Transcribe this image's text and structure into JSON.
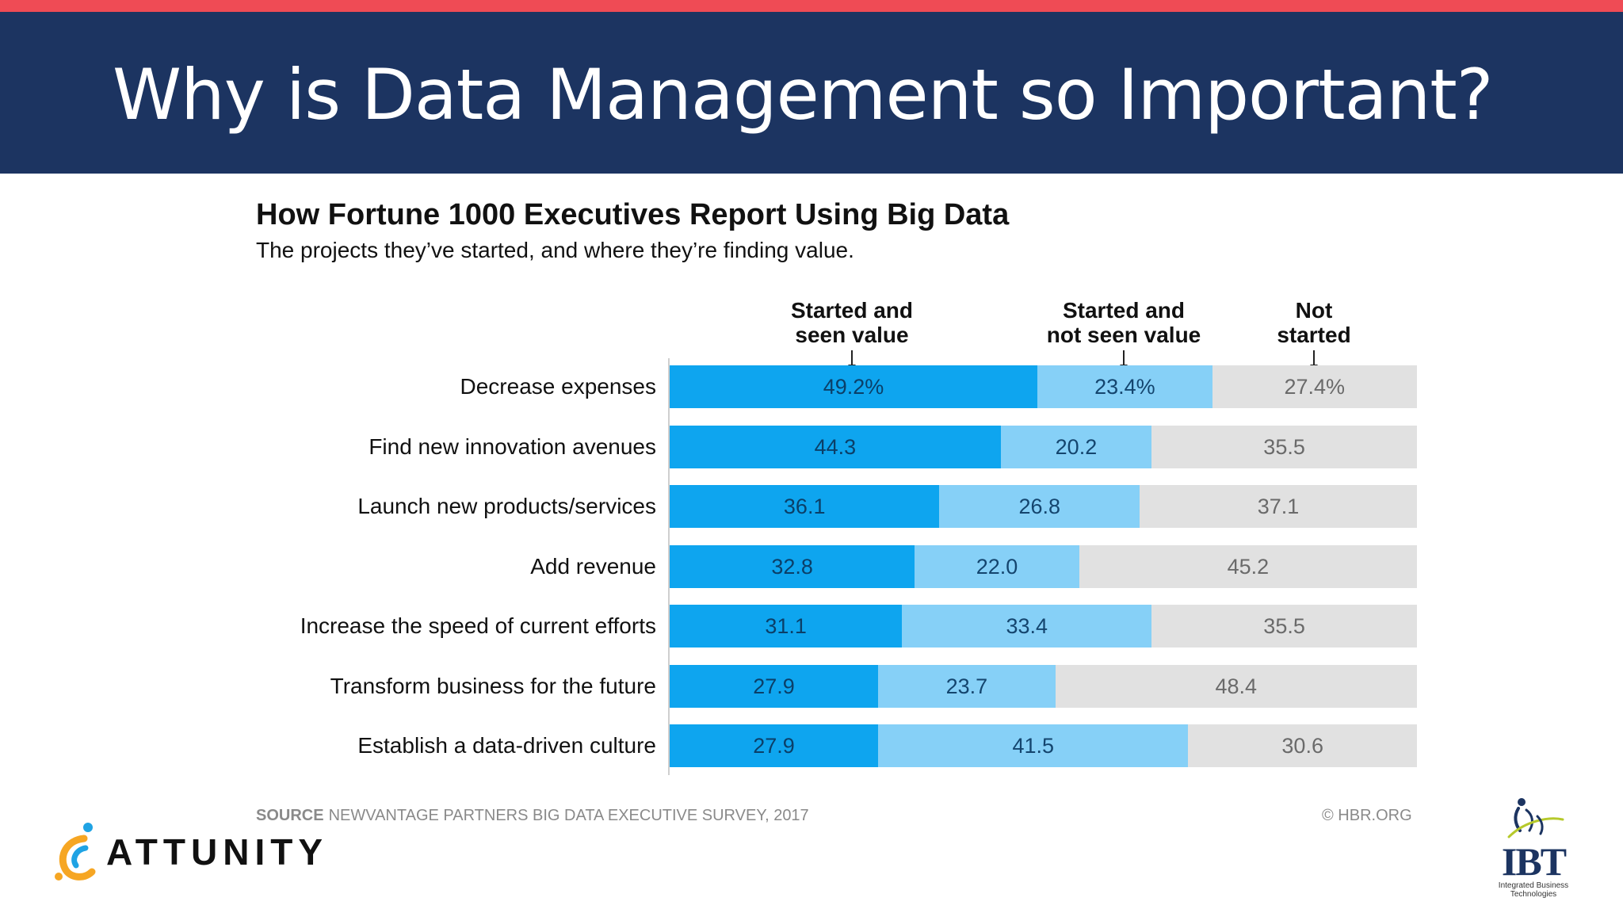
{
  "slide": {
    "title": "Why is Data Management so Important?"
  },
  "chart_data": {
    "type": "bar",
    "orientation": "horizontal",
    "stacked": true,
    "title": "How Fortune 1000 Executives Report Using Big Data",
    "subtitle": "The projects they’ve started, and where they’re finding value.",
    "categories": [
      "Decrease expenses",
      "Find new innovation avenues",
      "Launch new products/services",
      "Add revenue",
      "Increase the speed of current efforts",
      "Transform business for the future",
      "Establish a data-driven culture"
    ],
    "series": [
      {
        "name": "Started and seen value",
        "color": "#0ea5ef",
        "values": [
          49.2,
          44.3,
          36.1,
          32.8,
          31.1,
          27.9,
          27.9
        ]
      },
      {
        "name": "Started and not seen value",
        "color": "#86d0f7",
        "values": [
          23.4,
          20.2,
          26.8,
          22.0,
          33.4,
          23.7,
          41.5
        ]
      },
      {
        "name": "Not started",
        "color": "#e1e1e1",
        "values": [
          27.4,
          35.5,
          37.1,
          45.2,
          35.5,
          48.4,
          30.6
        ]
      }
    ],
    "data_labels": [
      [
        "49.2%",
        "23.4%",
        "27.4%"
      ],
      [
        "44.3",
        "20.2",
        "35.5"
      ],
      [
        "36.1",
        "26.8",
        "37.1"
      ],
      [
        "32.8",
        "22.0",
        "45.2"
      ],
      [
        "31.1",
        "33.4",
        "35.5"
      ],
      [
        "27.9",
        "23.7",
        "48.4"
      ],
      [
        "27.9",
        "41.5",
        "30.6"
      ]
    ],
    "legend": {
      "placement": "top",
      "labels": [
        [
          "Started and",
          "seen value"
        ],
        [
          "Started and",
          "not seen value"
        ],
        [
          "Not",
          "started"
        ]
      ]
    },
    "xlim": [
      0,
      100
    ],
    "grid": false
  },
  "footer": {
    "source_label": "SOURCE",
    "source_text": "NEWVANTAGE PARTNERS BIG DATA EXECUTIVE SURVEY, 2017",
    "copyright": "© HBR.ORG"
  },
  "logos": {
    "attunity_text": "ATTUNITY",
    "ibt_text": "IBT",
    "ibt_tagline_1": "Integrated Business",
    "ibt_tagline_2": "Technologies"
  }
}
